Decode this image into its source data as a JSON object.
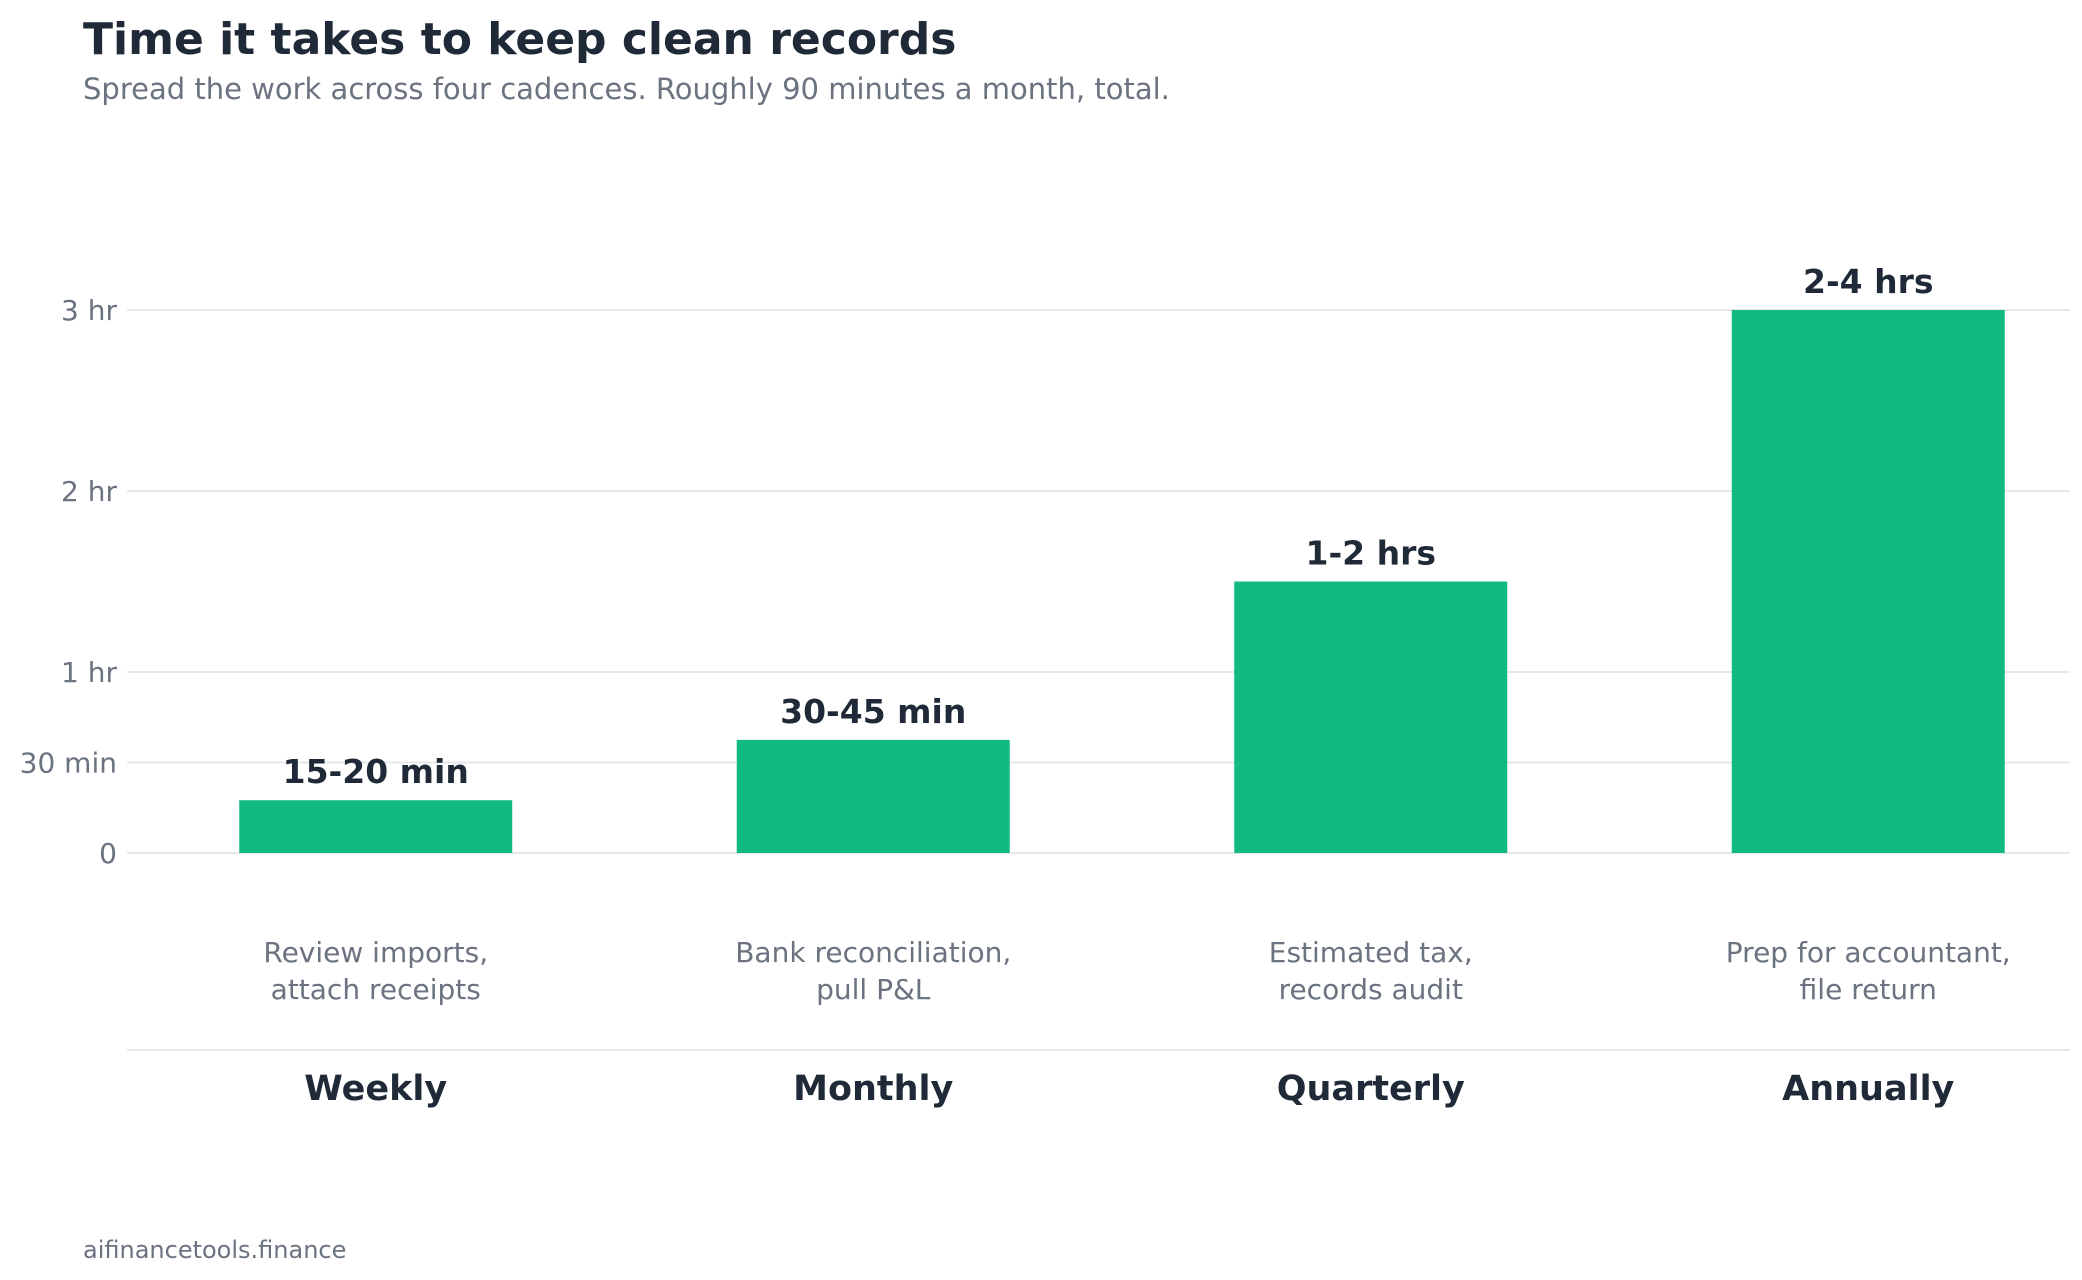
{
  "chart_data": {
    "type": "bar",
    "title": "Time it takes to keep clean records",
    "subtitle": "Spread the work across four cadences. Roughly 90 minutes a month, total.",
    "categories": [
      "Weekly",
      "Monthly",
      "Quarterly",
      "Annually"
    ],
    "descriptions": [
      [
        "Review imports,",
        "attach receipts"
      ],
      [
        "Bank reconciliation,",
        "pull P&L"
      ],
      [
        "Estimated tax,",
        "records audit"
      ],
      [
        "Prep for accountant,",
        "file return"
      ]
    ],
    "values": [
      17.5,
      37.5,
      90,
      180
    ],
    "value_unit": "minutes",
    "data_labels": [
      "15-20 min",
      "30-45 min",
      "1-2 hrs",
      "2-4 hrs"
    ],
    "ylim": [
      0,
      180
    ],
    "yticks": [
      {
        "value": 0,
        "label": "0"
      },
      {
        "value": 30,
        "label": "30 min"
      },
      {
        "value": 60,
        "label": "1 hr"
      },
      {
        "value": 120,
        "label": "2 hr"
      },
      {
        "value": 180,
        "label": "3 hr"
      }
    ],
    "grid": true,
    "xlabel": "",
    "ylabel": ""
  },
  "footer": {
    "source": "aifinancetools.finance"
  },
  "colors": {
    "bar": "#12b981",
    "title": "#1f2937",
    "muted": "#6b7280",
    "grid": "#e5e7eb"
  }
}
